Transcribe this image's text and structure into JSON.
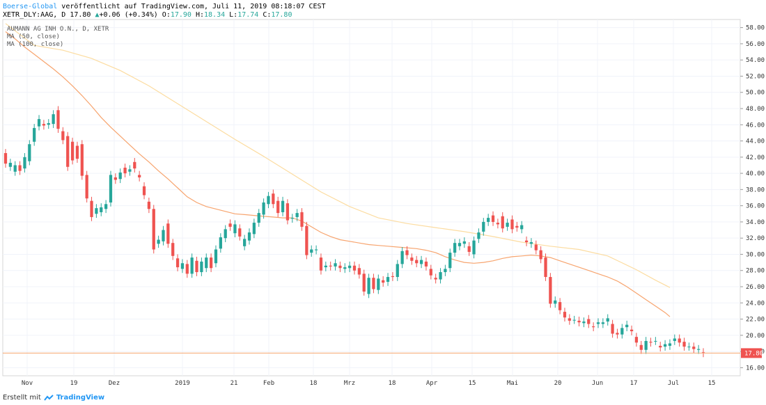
{
  "header": {
    "line1_brand": "Boerse-Global",
    "line1_text": " veröffentlicht auf TradingView.com, Juli 11, 2019 08:18:07 CEST",
    "symbol": "XETR_DLY:AAG, D 17.80",
    "change": "+0.06 (+0.34%)",
    "o_label": " O:",
    "o": "17.90",
    "h_label": " H:",
    "h": "18.34",
    "l_label": " L:",
    "l": "17.74",
    "c_label": " C:",
    "c": "17.80"
  },
  "legend": {
    "title": "AUMANN AG INH O.N., D, XETR",
    "ma50": "MA (50, close)",
    "ma100": "MA (100, close)"
  },
  "footer": {
    "prefix": "Erstellt mit",
    "brand": "TradingView"
  },
  "colors": {
    "up": "#26a69a",
    "down": "#ef5350",
    "ma50": "#f7a46e",
    "ma100": "#fcdca0",
    "grid": "#f0f3fa",
    "price_line": "#f7a46e",
    "price_tag": "#ef5350"
  },
  "chart_data": {
    "type": "candlestick",
    "title": "AUMANN AG INH O.N., D, XETR",
    "ylim": [
      15,
      59
    ],
    "y_ticks": [
      "58.00",
      "56.00",
      "54.00",
      "52.00",
      "50.00",
      "48.00",
      "46.00",
      "44.00",
      "42.00",
      "40.00",
      "38.00",
      "36.00",
      "34.00",
      "32.00",
      "30.00",
      "28.00",
      "26.00",
      "24.00",
      "22.00",
      "20.00",
      "18.00",
      "16.00"
    ],
    "x_ticks": [
      "Nov",
      "19",
      "Dez",
      "2019",
      "21",
      "Feb",
      "18",
      "Mrz",
      "18",
      "Apr",
      "15",
      "Mai",
      "20",
      "Jun",
      "17",
      "Jul",
      "15"
    ],
    "last_price": "17.80",
    "candles": [
      [
        42.5,
        41.2
      ],
      [
        40.8,
        41.3
      ],
      [
        40.2,
        41.0
      ],
      [
        41.0,
        40.3
      ],
      [
        40.6,
        42.0
      ],
      [
        41.5,
        43.6
      ],
      [
        43.9,
        45.6
      ],
      [
        45.8,
        46.7
      ],
      [
        46.1,
        45.9
      ],
      [
        46.0,
        46.2
      ],
      [
        46.1,
        47.3
      ],
      [
        47.8,
        45.5
      ],
      [
        45.2,
        44.1
      ],
      [
        44.6,
        40.8
      ],
      [
        43.9,
        41.6
      ],
      [
        43.4,
        41.8
      ],
      [
        43.6,
        39.7
      ],
      [
        39.8,
        36.9
      ],
      [
        36.6,
        34.6
      ],
      [
        35.0,
        35.7
      ],
      [
        35.2,
        35.8
      ],
      [
        35.6,
        36.2
      ],
      [
        36.4,
        39.8
      ],
      [
        39.5,
        39.2
      ],
      [
        39.3,
        40.1
      ],
      [
        40.7,
        40.0
      ],
      [
        40.2,
        40.5
      ],
      [
        41.4,
        40.6
      ],
      [
        39.8,
        39.5
      ],
      [
        38.4,
        37.3
      ],
      [
        36.5,
        35.6
      ],
      [
        35.6,
        30.6
      ],
      [
        31.3,
        31.8
      ],
      [
        31.6,
        33.0
      ],
      [
        33.8,
        31.3
      ],
      [
        31.4,
        29.8
      ],
      [
        29.5,
        28.4
      ],
      [
        28.2,
        28.9
      ],
      [
        28.8,
        27.6
      ],
      [
        27.6,
        29.6
      ],
      [
        29.2,
        27.8
      ],
      [
        27.8,
        29.1
      ],
      [
        28.3,
        29.6
      ],
      [
        29.6,
        28.3
      ],
      [
        28.9,
        30.6
      ],
      [
        30.7,
        32.1
      ],
      [
        32.0,
        33.1
      ],
      [
        33.8,
        33.4
      ],
      [
        32.6,
        33.7
      ],
      [
        33.2,
        32.2
      ],
      [
        31.0,
        31.9
      ],
      [
        31.7,
        32.7
      ],
      [
        32.5,
        33.9
      ],
      [
        33.9,
        35.1
      ],
      [
        34.9,
        36.4
      ],
      [
        36.2,
        37.2
      ],
      [
        37.5,
        36.2
      ],
      [
        36.6,
        35.1
      ],
      [
        35.2,
        36.6
      ],
      [
        36.3,
        34.2
      ],
      [
        34.4,
        34.5
      ],
      [
        34.6,
        35.1
      ],
      [
        35.2,
        33.4
      ],
      [
        33.5,
        29.9
      ],
      [
        30.2,
        30.6
      ],
      [
        30.5,
        30.6
      ],
      [
        29.6,
        28.0
      ],
      [
        28.4,
        28.6
      ],
      [
        28.6,
        28.5
      ],
      [
        28.5,
        28.9
      ],
      [
        28.6,
        28.3
      ],
      [
        28.2,
        28.4
      ],
      [
        28.3,
        28.6
      ],
      [
        28.6,
        28.0
      ],
      [
        28.3,
        27.5
      ],
      [
        27.6,
        25.4
      ],
      [
        25.1,
        27.1
      ],
      [
        27.1,
        25.7
      ],
      [
        25.6,
        27.0
      ],
      [
        26.8,
        26.5
      ],
      [
        26.6,
        27.2
      ],
      [
        27.3,
        27.2
      ],
      [
        27.2,
        28.8
      ],
      [
        28.8,
        30.4
      ],
      [
        30.5,
        29.9
      ],
      [
        29.6,
        29.2
      ],
      [
        29.3,
        28.9
      ],
      [
        28.8,
        29.3
      ],
      [
        29.1,
        28.5
      ],
      [
        28.2,
        27.4
      ],
      [
        27.1,
        26.9
      ],
      [
        26.9,
        27.8
      ],
      [
        27.8,
        28.2
      ],
      [
        28.3,
        30.2
      ],
      [
        30.2,
        31.4
      ],
      [
        31.0,
        31.4
      ],
      [
        31.3,
        31.6
      ],
      [
        31.0,
        30.3
      ],
      [
        30.0,
        31.7
      ],
      [
        31.9,
        32.7
      ],
      [
        32.8,
        34.0
      ],
      [
        34.0,
        34.5
      ],
      [
        34.8,
        34.0
      ],
      [
        33.9,
        33.7
      ],
      [
        34.7,
        33.2
      ],
      [
        33.4,
        33.9
      ],
      [
        34.3,
        33.1
      ],
      [
        33.5,
        33.3
      ],
      [
        33.1,
        33.6
      ],
      [
        31.7,
        31.5
      ],
      [
        31.3,
        31.5
      ],
      [
        31.2,
        30.5
      ],
      [
        30.5,
        29.4
      ],
      [
        29.6,
        27.2
      ],
      [
        27.2,
        23.9
      ],
      [
        23.9,
        24.3
      ],
      [
        24.1,
        23.1
      ],
      [
        22.9,
        22.2
      ],
      [
        22.1,
        21.8
      ],
      [
        21.9,
        21.9
      ],
      [
        21.8,
        21.6
      ],
      [
        21.5,
        21.7
      ],
      [
        22.0,
        21.4
      ],
      [
        21.1,
        21.0
      ],
      [
        21.4,
        21.6
      ],
      [
        21.4,
        21.6
      ],
      [
        21.7,
        22.1
      ],
      [
        21.4,
        20.2
      ],
      [
        20.3,
        20.1
      ],
      [
        20.1,
        20.9
      ],
      [
        21.0,
        21.3
      ],
      [
        20.7,
        20.5
      ],
      [
        19.8,
        19.1
      ],
      [
        18.8,
        18.2
      ],
      [
        18.2,
        19.3
      ],
      [
        19.2,
        19.1
      ],
      [
        19.3,
        19.3
      ],
      [
        18.7,
        18.5
      ],
      [
        18.6,
        18.9
      ],
      [
        18.7,
        19.0
      ],
      [
        19.3,
        19.6
      ],
      [
        19.6,
        19.1
      ],
      [
        19.2,
        18.6
      ],
      [
        18.6,
        18.6
      ],
      [
        18.6,
        18.3
      ],
      [
        18.2,
        18.3
      ],
      [
        17.9,
        17.8
      ]
    ],
    "ma50": [
      [
        0,
        57.5
      ],
      [
        2,
        56.6
      ],
      [
        4,
        55.6
      ],
      [
        6,
        54.7
      ],
      [
        8,
        53.8
      ],
      [
        10,
        52.9
      ],
      [
        12,
        51.9
      ],
      [
        14,
        50.8
      ],
      [
        16,
        49.6
      ],
      [
        18,
        48.3
      ],
      [
        20,
        46.9
      ],
      [
        22,
        45.7
      ],
      [
        24,
        44.6
      ],
      [
        26,
        43.5
      ],
      [
        28,
        42.4
      ],
      [
        30,
        41.4
      ],
      [
        32,
        40.3
      ],
      [
        34,
        39.3
      ],
      [
        36,
        38.2
      ],
      [
        38,
        37.1
      ],
      [
        40,
        36.4
      ],
      [
        42,
        35.9
      ],
      [
        44,
        35.6
      ],
      [
        46,
        35.3
      ],
      [
        48,
        35.0
      ],
      [
        50,
        34.9
      ],
      [
        52,
        34.8
      ],
      [
        54,
        34.7
      ],
      [
        56,
        34.6
      ],
      [
        58,
        34.5
      ],
      [
        60,
        34.5
      ],
      [
        62,
        34.1
      ],
      [
        64,
        33.4
      ],
      [
        66,
        32.7
      ],
      [
        68,
        32.2
      ],
      [
        70,
        31.8
      ],
      [
        72,
        31.6
      ],
      [
        74,
        31.4
      ],
      [
        76,
        31.2
      ],
      [
        78,
        31.1
      ],
      [
        80,
        31.0
      ],
      [
        82,
        30.9
      ],
      [
        84,
        30.8
      ],
      [
        86,
        30.7
      ],
      [
        88,
        30.5
      ],
      [
        90,
        30.2
      ],
      [
        92,
        29.7
      ],
      [
        94,
        29.3
      ],
      [
        96,
        29.0
      ],
      [
        98,
        28.9
      ],
      [
        100,
        29.0
      ],
      [
        102,
        29.2
      ],
      [
        104,
        29.5
      ],
      [
        106,
        29.7
      ],
      [
        108,
        29.8
      ],
      [
        110,
        29.9
      ],
      [
        112,
        29.8
      ],
      [
        114,
        29.6
      ],
      [
        116,
        29.2
      ],
      [
        118,
        28.8
      ],
      [
        120,
        28.4
      ],
      [
        122,
        28.0
      ],
      [
        124,
        27.6
      ],
      [
        126,
        27.2
      ],
      [
        128,
        26.7
      ],
      [
        130,
        26.0
      ],
      [
        132,
        25.2
      ],
      [
        134,
        24.4
      ],
      [
        136,
        23.6
      ],
      [
        138,
        22.8
      ],
      [
        139,
        22.3
      ]
    ],
    "ma100": [
      [
        0,
        58.5
      ],
      [
        6,
        55.8
      ],
      [
        12,
        55.2
      ],
      [
        18,
        54.2
      ],
      [
        24,
        52.7
      ],
      [
        30,
        50.8
      ],
      [
        36,
        48.6
      ],
      [
        42,
        46.4
      ],
      [
        48,
        44.2
      ],
      [
        54,
        42.1
      ],
      [
        60,
        39.9
      ],
      [
        66,
        37.7
      ],
      [
        72,
        35.9
      ],
      [
        78,
        34.5
      ],
      [
        84,
        33.8
      ],
      [
        90,
        33.3
      ],
      [
        96,
        32.8
      ],
      [
        102,
        32.2
      ],
      [
        108,
        31.5
      ],
      [
        114,
        31.0
      ],
      [
        120,
        30.6
      ],
      [
        126,
        29.8
      ],
      [
        132,
        28.1
      ],
      [
        136,
        26.8
      ],
      [
        139,
        25.9
      ]
    ],
    "ma_x_offset": 0
  }
}
